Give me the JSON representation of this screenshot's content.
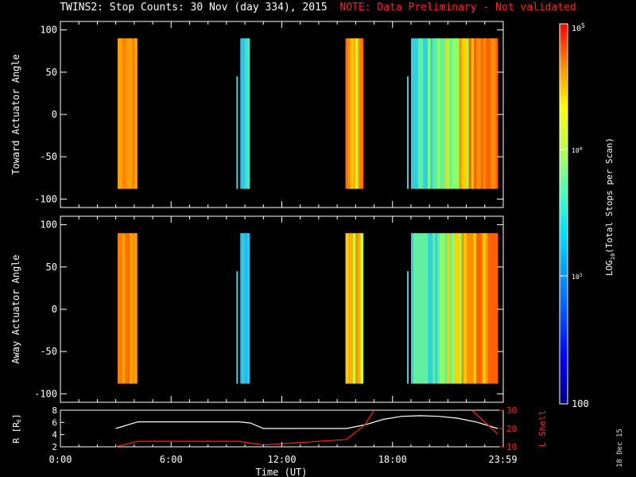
{
  "title": {
    "main": "TWINS2: Stop Counts: 30 Nov (day 334), 2015",
    "note": "NOTE: Data Preliminary - Not validated"
  },
  "stamp": "18 Dec 15",
  "colors": {
    "background": "#000000",
    "axes": "#ffffff",
    "note": "#ff2020",
    "l_shell": "#ff2020",
    "r_line": "#ffffff"
  },
  "chart_data": [
    {
      "type": "heatmap",
      "name": "toward",
      "ylabel": "Toward Actuator Angle",
      "ylim": [
        -110,
        110
      ],
      "yticks": [
        100,
        50,
        0,
        -50,
        -100
      ],
      "xlim_hours": [
        0,
        24
      ],
      "blocks_hours": [
        {
          "start": 3.1,
          "end": 4.15,
          "profile": "orange"
        },
        {
          "start": 9.75,
          "end": 10.25,
          "profile": "cyan"
        },
        {
          "start": 15.45,
          "end": 16.4,
          "profile": "orange-mixed"
        },
        {
          "start": 19.0,
          "end": 23.7,
          "profile": "cyan-to-orange"
        }
      ],
      "angle_range": [
        -88,
        90
      ]
    },
    {
      "type": "heatmap",
      "name": "away",
      "ylabel": "Away Actuator Angle",
      "ylim": [
        -110,
        110
      ],
      "yticks": [
        100,
        50,
        0,
        -50,
        -100
      ],
      "xlim_hours": [
        0,
        24
      ],
      "blocks_hours": [
        {
          "start": 3.1,
          "end": 4.15,
          "profile": "orange"
        },
        {
          "start": 9.75,
          "end": 10.25,
          "profile": "cyan"
        },
        {
          "start": 15.45,
          "end": 16.4,
          "profile": "orange-mixed"
        },
        {
          "start": 19.0,
          "end": 23.7,
          "profile": "cyan-to-orange"
        }
      ],
      "angle_range": [
        -88,
        90
      ]
    },
    {
      "type": "line",
      "name": "orbit",
      "ylabel_left": "R [R",
      "ylabel_left_sub": "E",
      "ylabel_left_end": "]",
      "ylabel_right": "L Shell",
      "ylim_left": [
        2,
        8
      ],
      "yticks_left": [
        8,
        6,
        4,
        2
      ],
      "ylim_right": [
        10,
        30
      ],
      "yticks_right": [
        30,
        20,
        10
      ],
      "xlabel": "Time (UT)",
      "xticks": [
        "0:00",
        "6:00",
        "12:00",
        "18:00",
        "23:59"
      ],
      "xtick_hours": [
        0,
        6,
        12,
        18,
        23.98
      ],
      "series": [
        {
          "name": "R",
          "x": [
            3.0,
            4.2,
            9.7,
            10.3,
            11.0,
            15.5,
            16.5,
            17.5,
            18.5,
            19.5,
            20.5,
            21.5,
            22.5,
            23.7
          ],
          "values": [
            5.0,
            6.1,
            6.1,
            5.9,
            5.0,
            5.0,
            5.6,
            6.5,
            7.0,
            7.1,
            7.0,
            6.7,
            6.1,
            5.0
          ]
        },
        {
          "name": "L Shell",
          "x": [
            3.0,
            4.2,
            9.7,
            10.3,
            11.0,
            15.5,
            16.5,
            17.0
          ],
          "values": [
            10,
            13,
            13,
            12,
            11,
            14,
            22,
            31
          ],
          "x2": [
            22.3,
            23.7
          ],
          "values2": [
            31,
            17
          ]
        }
      ]
    }
  ],
  "colorbar": {
    "label_pre": "LOG",
    "label_sub": "10",
    "label_post": "(Total Stops per Scan)",
    "tick_top_base": "10",
    "tick_top_exp": "5",
    "tick_mid_base": "10",
    "tick_mid_exp": "4",
    "tick_low_base": "10",
    "tick_low_exp": "3",
    "tick_bottom": "100",
    "range_log": [
      2,
      5
    ]
  }
}
